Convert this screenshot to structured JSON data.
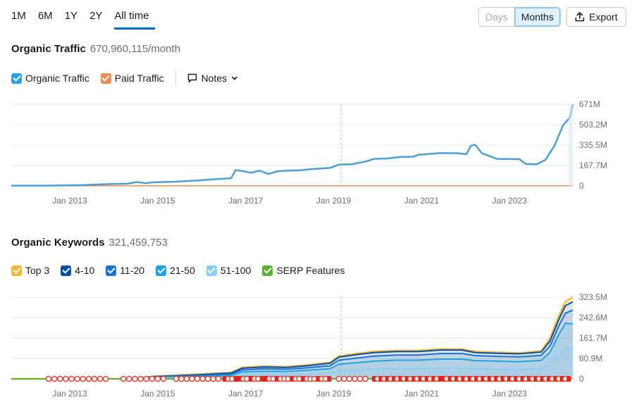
{
  "range_tabs": [
    {
      "label": "1M",
      "active": false
    },
    {
      "label": "6M",
      "active": false
    },
    {
      "label": "1Y",
      "active": false
    },
    {
      "label": "2Y",
      "active": false
    },
    {
      "label": "All time",
      "active": true
    }
  ],
  "granularity": {
    "days_label": "Days",
    "months_label": "Months",
    "selected": "Months"
  },
  "export_label": "Export",
  "traffic": {
    "title": "Organic Traffic",
    "value": "670,960,115/month",
    "legend": [
      {
        "label": "Organic Traffic",
        "color": "#2aa0e8",
        "checked": true
      },
      {
        "label": "Paid Traffic",
        "color": "#f08a4b",
        "checked": true
      }
    ],
    "notes_label": "Notes"
  },
  "keywords": {
    "title": "Organic Keywords",
    "value": "321,459,753",
    "legend": [
      {
        "label": "Top 3",
        "color": "#f2b931",
        "checked": true
      },
      {
        "label": "4-10",
        "color": "#0a4ea6",
        "checked": true
      },
      {
        "label": "11-20",
        "color": "#1474d8",
        "checked": true
      },
      {
        "label": "21-50",
        "color": "#1ea2e8",
        "checked": true
      },
      {
        "label": "51-100",
        "color": "#8ccdf5",
        "checked": true
      },
      {
        "label": "SERP Features",
        "color": "#5ab330",
        "checked": true
      }
    ]
  },
  "chart_data": [
    {
      "type": "line",
      "x_tick_labels": [
        "Jan 2013",
        "Jan 2015",
        "Jan 2017",
        "Jan 2019",
        "Jan 2021",
        "Jan 2023"
      ],
      "y_tick_labels": [
        "671M",
        "503.2M",
        "335.5M",
        "167.7M",
        "0"
      ],
      "ylim": [
        0,
        671
      ],
      "xlim": [
        2011.75,
        2024.5
      ],
      "grid": true,
      "series": [
        {
          "name": "Organic Traffic",
          "color": "#4a9fd8",
          "points": [
            [
              2011.75,
              2
            ],
            [
              2012.5,
              2
            ],
            [
              2013.0,
              4
            ],
            [
              2013.5,
              8
            ],
            [
              2014.0,
              15
            ],
            [
              2014.4,
              18
            ],
            [
              2014.6,
              32
            ],
            [
              2014.8,
              22
            ],
            [
              2015.0,
              30
            ],
            [
              2015.5,
              35
            ],
            [
              2016.0,
              45
            ],
            [
              2016.5,
              58
            ],
            [
              2016.75,
              63
            ],
            [
              2016.85,
              130
            ],
            [
              2017.0,
              122
            ],
            [
              2017.2,
              108
            ],
            [
              2017.4,
              125
            ],
            [
              2017.6,
              98
            ],
            [
              2017.8,
              120
            ],
            [
              2018.0,
              125
            ],
            [
              2018.3,
              128
            ],
            [
              2018.6,
              138
            ],
            [
              2018.9,
              145
            ],
            [
              2019.0,
              148
            ],
            [
              2019.2,
              175
            ],
            [
              2019.5,
              178
            ],
            [
              2019.8,
              200
            ],
            [
              2020.0,
              222
            ],
            [
              2020.3,
              225
            ],
            [
              2020.6,
              238
            ],
            [
              2020.9,
              240
            ],
            [
              2021.0,
              255
            ],
            [
              2021.5,
              270
            ],
            [
              2021.9,
              268
            ],
            [
              2022.1,
              260
            ],
            [
              2022.2,
              330
            ],
            [
              2022.3,
              338
            ],
            [
              2022.45,
              268
            ],
            [
              2022.8,
              222
            ],
            [
              2023.3,
              220
            ],
            [
              2023.45,
              180
            ],
            [
              2023.7,
              178
            ],
            [
              2023.9,
              215
            ],
            [
              2024.1,
              330
            ],
            [
              2024.3,
              500
            ],
            [
              2024.45,
              560
            ],
            [
              2024.52,
              670
            ]
          ]
        },
        {
          "name": "Paid Traffic",
          "color": "#f08a4b",
          "points": [
            [
              2011.75,
              0.5
            ],
            [
              2024.52,
              0.5
            ]
          ]
        }
      ]
    },
    {
      "type": "area",
      "x_tick_labels": [
        "Jan 2013",
        "Jan 2015",
        "Jan 2017",
        "Jan 2019",
        "Jan 2021",
        "Jan 2023"
      ],
      "y_tick_labels": [
        "323.5M",
        "242.6M",
        "161.7M",
        "80.9M",
        "0"
      ],
      "ylim": [
        0,
        323.5
      ],
      "xlim": [
        2011.75,
        2024.5
      ],
      "grid": true,
      "x": [
        2011.75,
        2014.5,
        2015.0,
        2016.0,
        2016.75,
        2017.0,
        2017.5,
        2018.0,
        2018.5,
        2019.0,
        2019.2,
        2019.6,
        2020.0,
        2020.5,
        2021.0,
        2021.5,
        2022.0,
        2022.3,
        2022.8,
        2023.3,
        2023.8,
        2024.0,
        2024.2,
        2024.35,
        2024.52
      ],
      "series": [
        {
          "name": "Top 3",
          "color": "#f2b931",
          "values": [
            0,
            0,
            10,
            18,
            25,
            45,
            50,
            48,
            55,
            65,
            90,
            100,
            108,
            112,
            112,
            118,
            118,
            108,
            105,
            102,
            110,
            160,
            250,
            305,
            323
          ]
        },
        {
          "name": "4-10",
          "color": "#0a4ea6",
          "values": [
            0,
            0,
            9,
            16,
            23,
            42,
            47,
            45,
            52,
            62,
            86,
            96,
            104,
            108,
            108,
            114,
            114,
            104,
            101,
            99,
            106,
            150,
            235,
            290,
            305
          ]
        },
        {
          "name": "11-20",
          "color": "#1474d8",
          "values": [
            0,
            0,
            7,
            13,
            19,
            35,
            40,
            38,
            44,
            52,
            74,
            82,
            90,
            94,
            94,
            100,
            100,
            92,
            89,
            87,
            93,
            130,
            210,
            260,
            272
          ]
        },
        {
          "name": "21-50",
          "color": "#1ea2e8",
          "values": [
            0,
            0,
            5,
            9,
            14,
            27,
            30,
            29,
            34,
            40,
            58,
            64,
            70,
            74,
            74,
            78,
            78,
            72,
            70,
            68,
            73,
            105,
            175,
            220,
            218
          ]
        },
        {
          "name": "51-100",
          "color": "#8ccdf5",
          "values": [
            0,
            0,
            3,
            5,
            8,
            14,
            16,
            16,
            19,
            22,
            32,
            34,
            38,
            40,
            40,
            42,
            42,
            40,
            38,
            37,
            40,
            58,
            95,
            120,
            118
          ]
        }
      ]
    }
  ]
}
